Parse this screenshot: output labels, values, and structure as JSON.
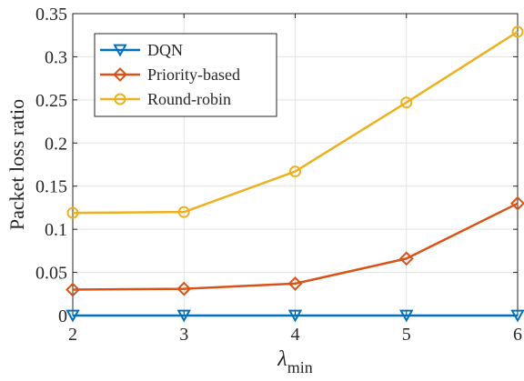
{
  "chart_data": {
    "type": "line",
    "title": "",
    "xlabel": "λ",
    "xlabel_subscript": "min",
    "ylabel": "Packet loss ratio",
    "x": [
      2,
      3,
      4,
      5,
      6
    ],
    "xlim": [
      2,
      6
    ],
    "ylim": [
      0,
      0.35
    ],
    "xticks": [
      "2",
      "3",
      "4",
      "5",
      "6"
    ],
    "yticks": [
      "0",
      "0.05",
      "0.1",
      "0.15",
      "0.2",
      "0.25",
      "0.3",
      "0.35"
    ],
    "grid": true,
    "legend_position": "top-left",
    "series": [
      {
        "name": "DQN",
        "values": [
          0,
          0,
          0,
          0,
          0
        ],
        "color": "#0072BD",
        "marker": "triangle-down"
      },
      {
        "name": "Priority-based",
        "values": [
          0.03,
          0.031,
          0.037,
          0.066,
          0.13
        ],
        "color": "#D95319",
        "marker": "diamond"
      },
      {
        "name": "Round-robin",
        "values": [
          0.119,
          0.12,
          0.167,
          0.247,
          0.329
        ],
        "color": "#EDB120",
        "marker": "circle"
      }
    ]
  }
}
